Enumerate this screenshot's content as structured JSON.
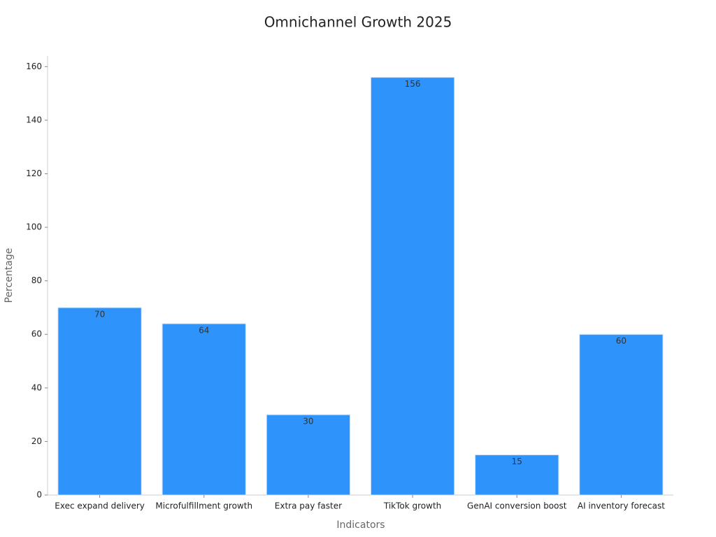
{
  "chart_data": {
    "type": "bar",
    "title": "Omnichannel Growth 2025",
    "x_label": "Indicators",
    "y_label": "Percentage",
    "categories": [
      "Exec expand delivery",
      "Microfulfillment growth",
      "Extra pay faster",
      "TikTok growth",
      "GenAI conversion boost",
      "AI inventory forecast"
    ],
    "values": [
      70,
      64,
      30,
      156,
      15,
      60
    ],
    "color": "#2e93fa",
    "ylim": [
      0,
      164
    ],
    "yticks": [
      0,
      20,
      40,
      60,
      80,
      100,
      120,
      140,
      160
    ],
    "grid": false
  }
}
